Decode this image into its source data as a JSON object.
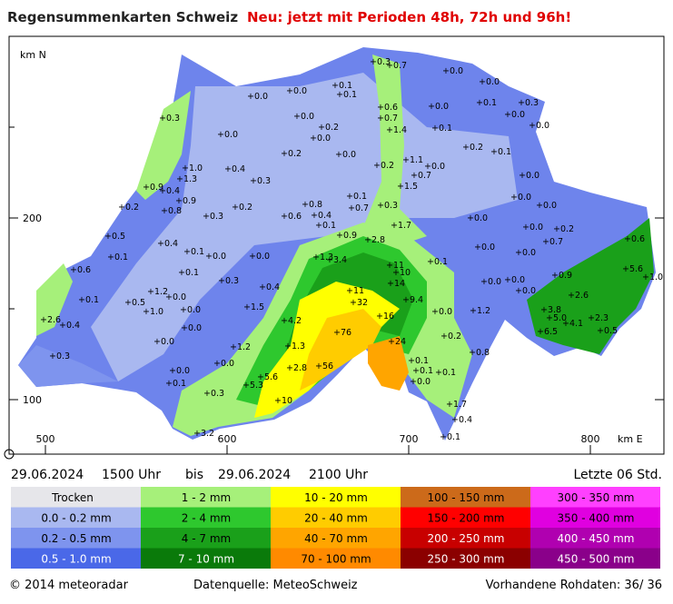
{
  "header": {
    "title": "Regensummenkarten Schweiz",
    "subtitle": "Neu: jetzt mit Perioden 48h, 72h und 96h!"
  },
  "map": {
    "axis_labels": {
      "y_unit": "km N",
      "y_200": "200",
      "y_100": "100",
      "x_500": "500",
      "x_600": "600",
      "x_700": "700",
      "x_800": "800",
      "x_unit": "km E"
    },
    "stations": [
      "+0.3",
      "+0.7",
      "+0.0",
      "+0.0",
      "+0.1",
      "+0.1",
      "+0.0",
      "+0.0",
      "+0.6",
      "+0.7",
      "+1.4",
      "+0.0",
      "+0.1",
      "+0.3",
      "+0.0",
      "+0.0",
      "+0.1",
      "+0.0",
      "+0.2",
      "+0.0",
      "+0.3",
      "+0.0",
      "+0.2",
      "+0.0",
      "+0.2",
      "+0.1",
      "+0.2",
      "+1.1",
      "+0.0",
      "+0.7",
      "+1.0",
      "+0.4",
      "+1.3",
      "+0.3",
      "+0.9",
      "+0.4",
      "+0.9",
      "+0.1",
      "+0.3",
      "+0.8",
      "+1.5",
      "+0.0",
      "+0.0",
      "+0.0",
      "+0.2",
      "+0.8",
      "+0.3",
      "+0.2",
      "+0.6",
      "+0.4",
      "+0.7",
      "+0.1",
      "+1.7",
      "+0.0",
      "+0.0",
      "+0.2",
      "+0.7",
      "+0.6",
      "+0.5",
      "+0.4",
      "+0.1",
      "+0.9",
      "+2.8",
      "+0.0",
      "+0.0",
      "+0.1",
      "+0.0",
      "+0.0",
      "+0.1",
      "+1.3",
      "+3.4",
      "+11",
      "+10",
      "+14",
      "+9.4",
      "+0.6",
      "+0.1",
      "+0.3",
      "+0.4",
      "+0.9",
      "+5.6",
      "+1.0",
      "+0.0",
      "+0.0",
      "+0.0",
      "+11",
      "+32",
      "+1.2",
      "+0.5",
      "+0.1",
      "+0.0",
      "+1.0",
      "+1.5",
      "+0.0",
      "+0.0",
      "+1.2",
      "+2.6",
      "+16",
      "+2.6",
      "+0.4",
      "+4.2",
      "+0.0",
      "+3.8",
      "+5.0",
      "+4.1",
      "+2.3",
      "+6.5",
      "+0.5",
      "+76",
      "+24",
      "+0.0",
      "+0.2",
      "+1.2",
      "+1.3",
      "+0.8",
      "+0.3",
      "+0.0",
      "+2.8",
      "+56",
      "+0.1",
      "+0.1",
      "+0.0",
      "+0.1",
      "+0.1",
      "+5.6",
      "+5.3",
      "+0.3",
      "+0.0",
      "+10",
      "+1.7",
      "+0.4",
      "+3.2",
      "+0.1"
    ]
  },
  "period": {
    "start_date": "29.06.2024",
    "start_time": "1500 Uhr",
    "separator": "bis",
    "end_date": "29.06.2024",
    "end_time": "2100 Uhr",
    "window": "Letzte 06 Std."
  },
  "legend": {
    "rows": [
      [
        "Trocken",
        "1 - 2 mm",
        "10 - 20 mm",
        "100 - 150 mm",
        "300 - 350 mm"
      ],
      [
        "0.0 - 0.2 mm",
        "2 - 4 mm",
        "20 - 40 mm",
        "150 - 200 mm",
        "350 - 400 mm"
      ],
      [
        "0.2 - 0.5 mm",
        "4 - 7 mm",
        "40 - 70 mm",
        "200 - 250 mm",
        "400 - 450 mm"
      ],
      [
        "0.5 - 1.0 mm",
        "7 - 10 mm",
        "70 - 100 mm",
        "250 - 300 mm",
        "450 - 500 mm"
      ]
    ]
  },
  "footer": {
    "copyright": "© 2014 meteoradar",
    "source": "Datenquelle: MeteoSchweiz",
    "raw_data": "Vorhandene Rohdaten: 36/ 36"
  }
}
